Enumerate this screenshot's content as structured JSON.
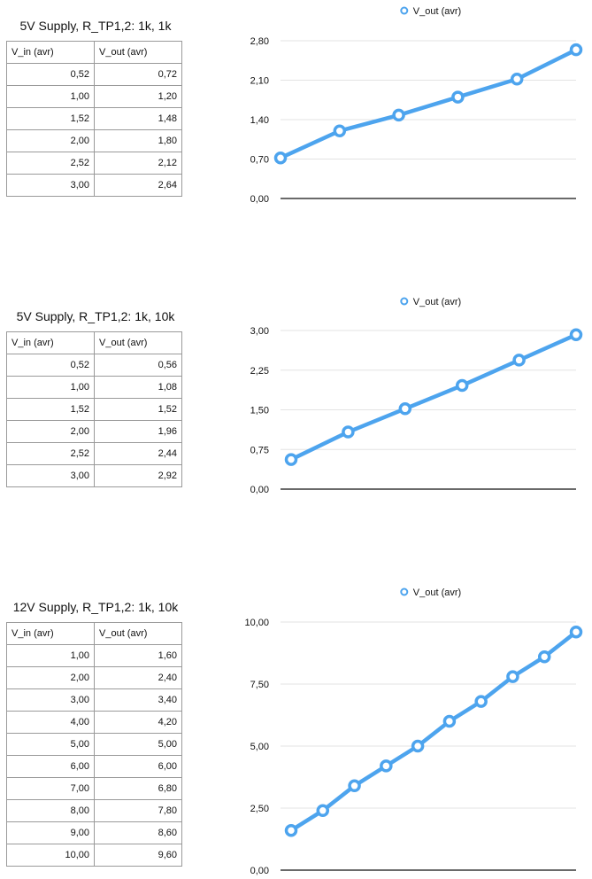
{
  "colors": {
    "series": "#4da4ee",
    "grid": "#e3e3e3",
    "axis": "#111111"
  },
  "sections": [
    {
      "title": "5V Supply, R_TP1,2: 1k, 1k",
      "table": {
        "headers": [
          "V_in (avr)",
          "V_out (avr)"
        ],
        "rows": [
          [
            "0,52",
            "0,72"
          ],
          [
            "1,00",
            "1,20"
          ],
          [
            "1,52",
            "1,48"
          ],
          [
            "2,00",
            "1,80"
          ],
          [
            "2,52",
            "2,12"
          ],
          [
            "3,00",
            "2,64"
          ]
        ]
      }
    },
    {
      "title": "5V Supply, R_TP1,2: 1k, 10k",
      "table": {
        "headers": [
          "V_in (avr)",
          "V_out (avr)"
        ],
        "rows": [
          [
            "0,52",
            "0,56"
          ],
          [
            "1,00",
            "1,08"
          ],
          [
            "1,52",
            "1,52"
          ],
          [
            "2,00",
            "1,96"
          ],
          [
            "2,52",
            "2,44"
          ],
          [
            "3,00",
            "2,92"
          ]
        ]
      }
    },
    {
      "title": "12V Supply, R_TP1,2: 1k, 10k",
      "table": {
        "headers": [
          "V_in (avr)",
          "V_out (avr)"
        ],
        "rows": [
          [
            "1,00",
            "1,60"
          ],
          [
            "2,00",
            "2,40"
          ],
          [
            "3,00",
            "3,40"
          ],
          [
            "4,00",
            "4,20"
          ],
          [
            "5,00",
            "5,00"
          ],
          [
            "6,00",
            "6,00"
          ],
          [
            "7,00",
            "6,80"
          ],
          [
            "8,00",
            "7,80"
          ],
          [
            "9,00",
            "8,60"
          ],
          [
            "10,00",
            "9,60"
          ]
        ]
      }
    }
  ],
  "chart_data": [
    {
      "type": "line",
      "legend": "top",
      "grid": true,
      "ylim": [
        0,
        2.8
      ],
      "yticks": [
        "0,00",
        "0,70",
        "1,40",
        "2,10",
        "2,80"
      ],
      "series": [
        {
          "name": "V_out (avr)",
          "values": [
            0.72,
            1.2,
            1.48,
            1.8,
            2.12,
            2.64
          ]
        }
      ]
    },
    {
      "type": "line",
      "legend": "top",
      "grid": true,
      "ylim": [
        0,
        3.0
      ],
      "yticks": [
        "0,00",
        "0,75",
        "1,50",
        "2,25",
        "3,00"
      ],
      "series": [
        {
          "name": "V_out (avr)",
          "values": [
            0.56,
            1.08,
            1.52,
            1.96,
            2.44,
            2.92
          ]
        }
      ]
    },
    {
      "type": "line",
      "legend": "top",
      "grid": true,
      "ylim": [
        0,
        10
      ],
      "yticks": [
        "0,00",
        "2,50",
        "5,00",
        "7,50",
        "10,00"
      ],
      "series": [
        {
          "name": "V_out (avr)",
          "values": [
            1.6,
            2.4,
            3.4,
            4.2,
            5.0,
            6.0,
            6.8,
            7.8,
            8.6,
            9.6
          ]
        }
      ]
    }
  ]
}
